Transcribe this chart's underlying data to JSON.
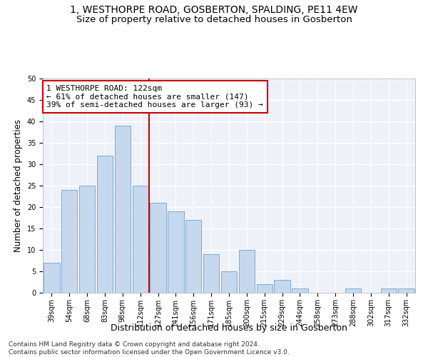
{
  "title": "1, WESTHORPE ROAD, GOSBERTON, SPALDING, PE11 4EW",
  "subtitle": "Size of property relative to detached houses in Gosberton",
  "xlabel": "Distribution of detached houses by size in Gosberton",
  "ylabel": "Number of detached properties",
  "categories": [
    "39sqm",
    "54sqm",
    "68sqm",
    "83sqm",
    "98sqm",
    "112sqm",
    "127sqm",
    "141sqm",
    "156sqm",
    "171sqm",
    "185sqm",
    "200sqm",
    "215sqm",
    "229sqm",
    "244sqm",
    "258sqm",
    "273sqm",
    "288sqm",
    "302sqm",
    "317sqm",
    "332sqm"
  ],
  "values": [
    7,
    24,
    25,
    32,
    39,
    25,
    21,
    19,
    17,
    9,
    5,
    10,
    2,
    3,
    1,
    0,
    0,
    1,
    0,
    1,
    1
  ],
  "bar_color": "#c5d8ee",
  "bar_edge_color": "#7badd4",
  "vline_x": 5.5,
  "vline_color": "#cc0000",
  "annotation_text": "1 WESTHORPE ROAD: 122sqm\n← 61% of detached houses are smaller (147)\n39% of semi-detached houses are larger (93) →",
  "annotation_box_color": "#cc0000",
  "ylim": [
    0,
    50
  ],
  "yticks": [
    0,
    5,
    10,
    15,
    20,
    25,
    30,
    35,
    40,
    45,
    50
  ],
  "footer": "Contains HM Land Registry data © Crown copyright and database right 2024.\nContains public sector information licensed under the Open Government Licence v3.0.",
  "bg_color": "#eef2f8",
  "grid_color": "#ffffff",
  "title_fontsize": 10,
  "subtitle_fontsize": 9.5,
  "xlabel_fontsize": 9,
  "ylabel_fontsize": 8.5,
  "tick_fontsize": 7,
  "footer_fontsize": 6.5,
  "ann_fontsize": 8
}
